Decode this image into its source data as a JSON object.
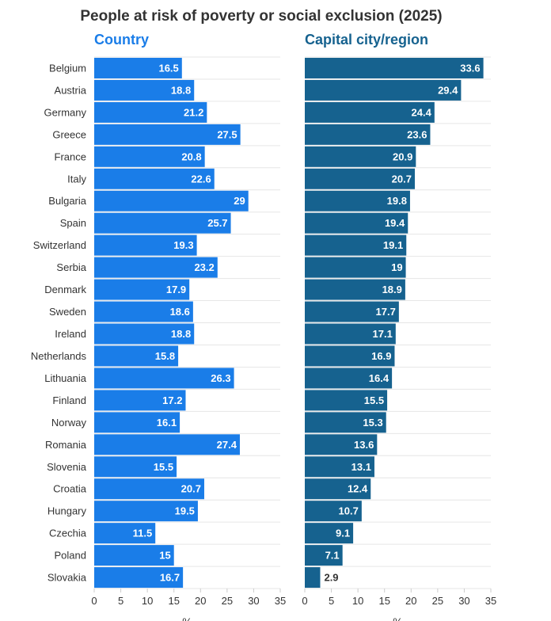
{
  "chart_data": {
    "type": "bar",
    "title": "People at risk of poverty or social exclusion (2025)",
    "categories": [
      "Belgium",
      "Austria",
      "Germany",
      "Greece",
      "France",
      "Italy",
      "Bulgaria",
      "Spain",
      "Switzerland",
      "Serbia",
      "Denmark",
      "Sweden",
      "Ireland",
      "Netherlands",
      "Lithuania",
      "Finland",
      "Norway",
      "Romania",
      "Slovenia",
      "Croatia",
      "Hungary",
      "Czechia",
      "Poland",
      "Slovakia"
    ],
    "series": [
      {
        "name": "Country",
        "color": "#1a7de8",
        "values": [
          16.5,
          18.8,
          21.2,
          27.5,
          20.8,
          22.6,
          29,
          25.7,
          19.3,
          23.2,
          17.9,
          18.6,
          18.8,
          15.8,
          26.3,
          17.2,
          16.1,
          27.4,
          15.5,
          20.7,
          19.5,
          11.5,
          15,
          16.7
        ]
      },
      {
        "name": "Capital city/region",
        "color": "#16628f",
        "values": [
          33.6,
          29.4,
          24.4,
          23.6,
          20.9,
          20.7,
          19.8,
          19.4,
          19.1,
          19,
          18.9,
          17.7,
          17.1,
          16.9,
          16.4,
          15.5,
          15.3,
          13.6,
          13.1,
          12.4,
          10.7,
          9.1,
          7.1,
          2.9
        ]
      }
    ],
    "xlim": [
      0,
      35
    ],
    "xticks": [
      0,
      5,
      10,
      15,
      20,
      25,
      30,
      35
    ],
    "xlabel": "%",
    "grid": true,
    "title_color": "#333333"
  }
}
